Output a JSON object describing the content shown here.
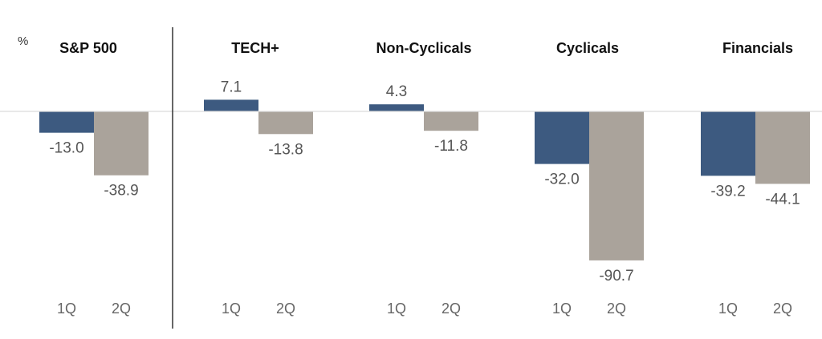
{
  "chart_data": {
    "type": "bar",
    "unit_label": "%",
    "groups": [
      {
        "title": "S&P 500",
        "categories": [
          "1Q",
          "2Q"
        ],
        "values": [
          -13.0,
          -38.9
        ],
        "value_labels": [
          "-13.0",
          "-38.9"
        ]
      },
      {
        "title": "TECH+",
        "categories": [
          "1Q",
          "2Q"
        ],
        "values": [
          7.1,
          -13.8
        ],
        "value_labels": [
          "7.1",
          "-13.8"
        ]
      },
      {
        "title": "Non-Cyclicals",
        "categories": [
          "1Q",
          "2Q"
        ],
        "values": [
          4.3,
          -11.8
        ],
        "value_labels": [
          "4.3",
          "-11.8"
        ]
      },
      {
        "title": "Cyclicals",
        "categories": [
          "1Q",
          "2Q"
        ],
        "values": [
          -32.0,
          -90.7
        ],
        "value_labels": [
          "-32.0",
          "-90.7"
        ]
      },
      {
        "title": "Financials",
        "categories": [
          "1Q",
          "2Q"
        ],
        "values": [
          -39.2,
          -44.1
        ],
        "value_labels": [
          "-39.2",
          "-44.1"
        ]
      }
    ],
    "series_colors": [
      "#3d5a80",
      "#aaa39b"
    ],
    "ylim": [
      -90.7,
      7.1
    ],
    "grid": false,
    "legend": "none"
  }
}
